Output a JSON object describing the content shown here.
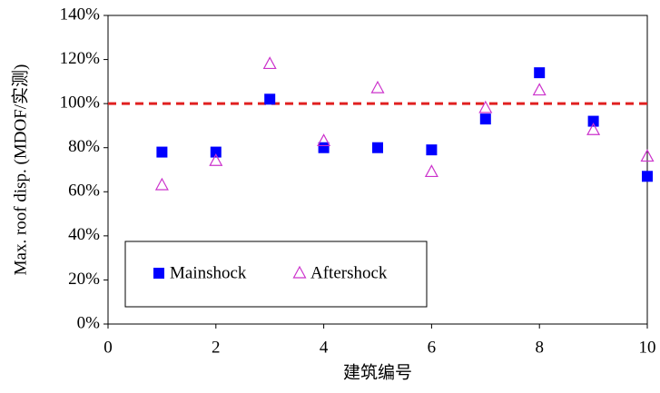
{
  "chart_data": {
    "type": "scatter",
    "x_label": "建筑编号",
    "y_label": "Max. roof disp. (MDOF/实测)",
    "xlim": [
      0,
      10
    ],
    "xticks": [
      0,
      2,
      4,
      6,
      8,
      10
    ],
    "ylim": [
      0,
      140
    ],
    "yticks": [
      {
        "value": 0,
        "label": "0%"
      },
      {
        "value": 20,
        "label": "20%"
      },
      {
        "value": 40,
        "label": "40%"
      },
      {
        "value": 60,
        "label": "60%"
      },
      {
        "value": 80,
        "label": "80%"
      },
      {
        "value": 100,
        "label": "100%"
      },
      {
        "value": 120,
        "label": "120%"
      },
      {
        "value": 140,
        "label": "140%"
      }
    ],
    "reference_line": {
      "value": 100,
      "color": "#e02020"
    },
    "legend": "lower left",
    "series": [
      {
        "name": "Mainshock",
        "color": "#0000ff",
        "marker": "square",
        "x": [
          1,
          2,
          3,
          4,
          5,
          6,
          7,
          8,
          9,
          10
        ],
        "values": [
          78,
          78,
          102,
          80,
          80,
          79,
          93,
          114,
          92,
          67
        ]
      },
      {
        "name": "Aftershock",
        "color": "#cc33cc",
        "marker": "triangle",
        "x": [
          1,
          2,
          3,
          4,
          5,
          6,
          7,
          8,
          9,
          10
        ],
        "values": [
          63,
          74,
          118,
          83,
          107,
          69,
          98,
          106,
          88,
          76
        ]
      }
    ]
  }
}
